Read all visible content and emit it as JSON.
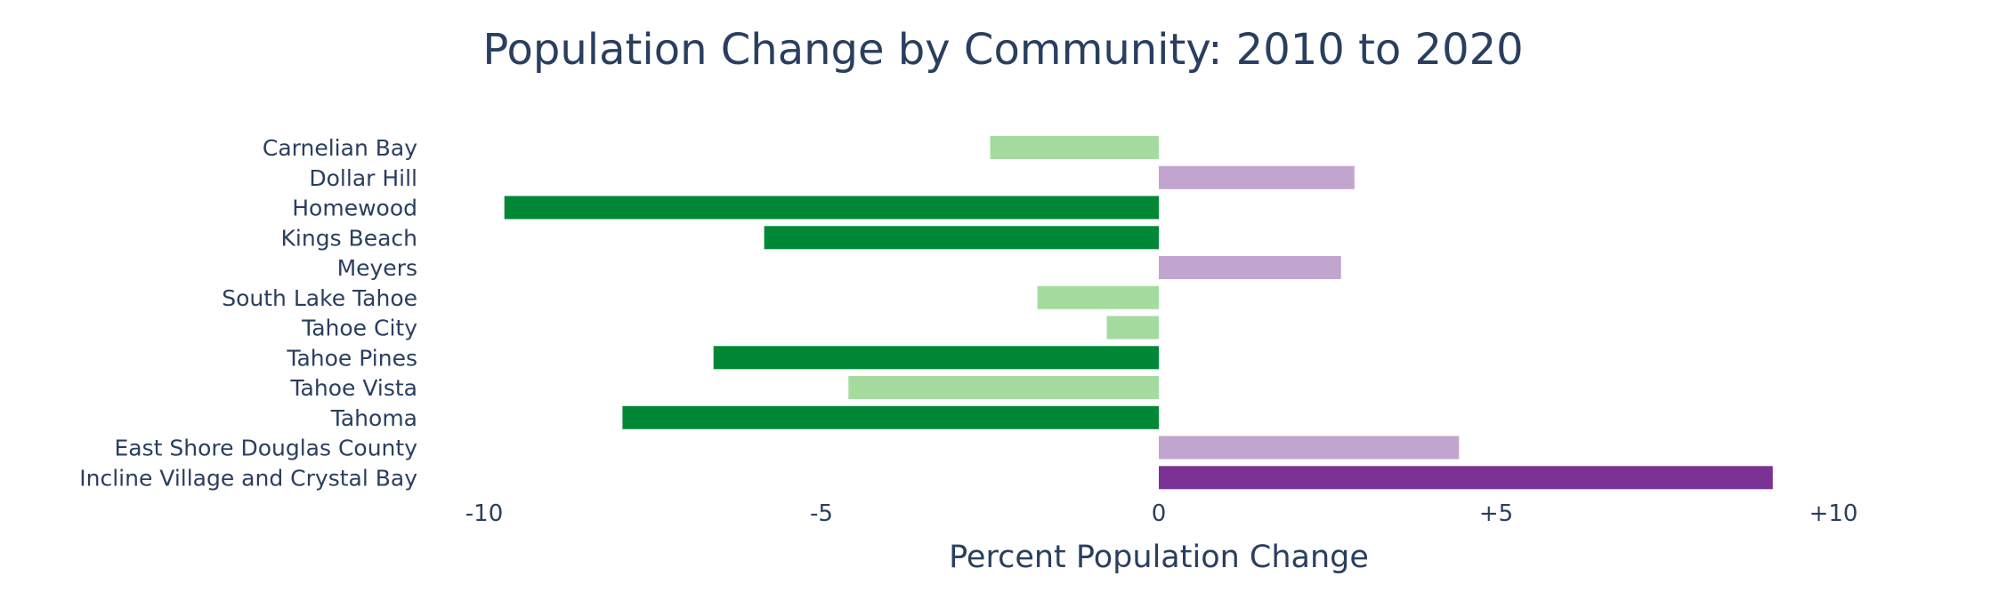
{
  "chart_data": {
    "type": "bar",
    "orientation": "horizontal",
    "title": "Population Change by Community: 2010 to 2020",
    "xlabel": "Percent Population Change",
    "ylabel": "",
    "xlim": [
      -10.5,
      12
    ],
    "xticks": [
      {
        "value": -10,
        "label": "-10"
      },
      {
        "value": -5,
        "label": "-5"
      },
      {
        "value": 0,
        "label": "0"
      },
      {
        "value": 5,
        "label": "+5"
      },
      {
        "value": 10,
        "label": "+10"
      }
    ],
    "grid": false,
    "legend": "none",
    "categories": [
      "Carnelian Bay",
      "Dollar Hill",
      "Homewood",
      "Kings Beach",
      "Meyers",
      "South Lake Tahoe",
      "Tahoe City",
      "Tahoe Pines",
      "Tahoe Vista",
      "Tahoma",
      "East Shore Douglas County",
      "Incline Village and Crystal Bay"
    ],
    "values": [
      -2.5,
      2.9,
      -9.7,
      -5.85,
      2.7,
      -1.8,
      -0.77,
      -6.6,
      -4.6,
      -7.95,
      4.45,
      9.1
    ],
    "colors": [
      "#a6dba0",
      "#c2a5cf",
      "#008837",
      "#008837",
      "#c2a5cf",
      "#a6dba0",
      "#a6dba0",
      "#008837",
      "#a6dba0",
      "#008837",
      "#c2a5cf",
      "#7b3294"
    ],
    "text_color": "#2a3f5f"
  }
}
